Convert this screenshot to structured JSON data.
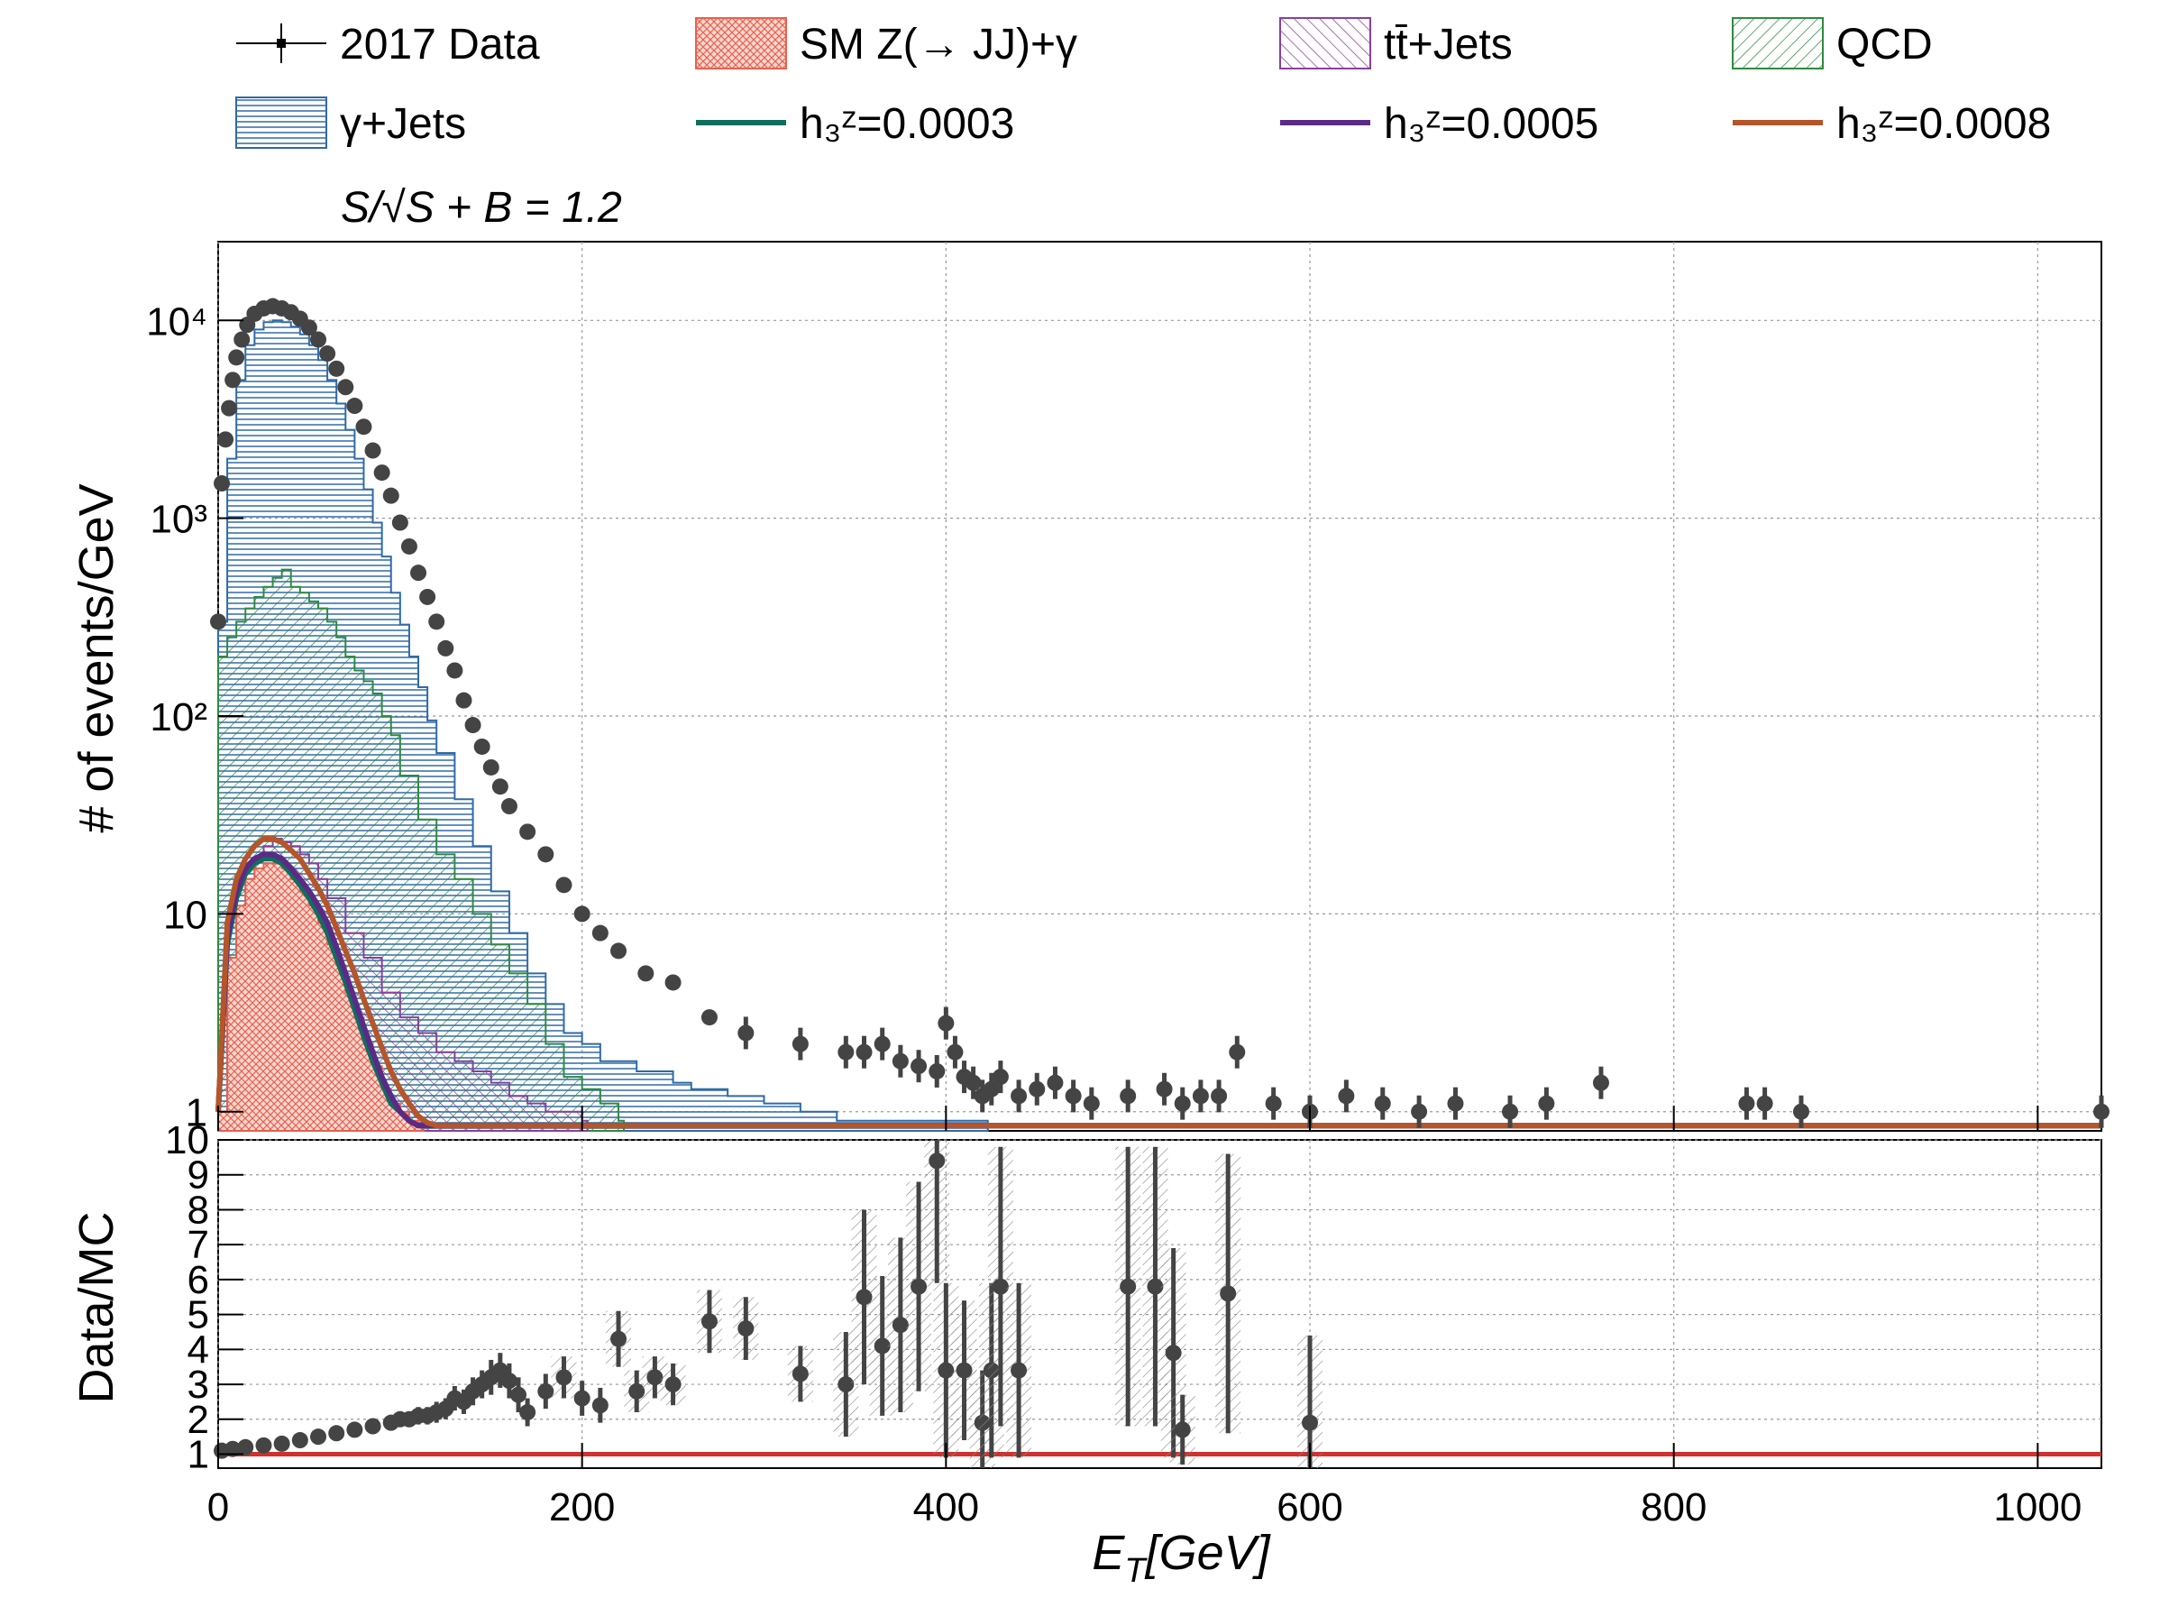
{
  "legend": {
    "entries": [
      {
        "key": "data",
        "label": "2017 Data",
        "style": "marker",
        "color": "#000000"
      },
      {
        "key": "smzg",
        "label": "SM Z(→ JJ)+γ",
        "style": "hatch-red",
        "color": "#e8604c"
      },
      {
        "key": "ttjets",
        "label": "tt̄+Jets",
        "style": "hatch-purple",
        "color": "#8a3f9e"
      },
      {
        "key": "qcd",
        "label": "QCD",
        "style": "hatch-green",
        "color": "#2e8b3e"
      },
      {
        "key": "gjets",
        "label": "γ+Jets",
        "style": "hatch-blue",
        "color": "#2f6aa8"
      },
      {
        "key": "h3_1",
        "label": "h₃ᶻ=0.0003",
        "style": "line",
        "color": "#0f6e5e"
      },
      {
        "key": "h3_2",
        "label": "h₃ᶻ=0.0005",
        "style": "line",
        "color": "#5b2a86"
      },
      {
        "key": "h3_3",
        "label": "h₃ᶻ=0.0008",
        "style": "line",
        "color": "#b5552a"
      }
    ],
    "significance": "S/√S + B = 1.2"
  },
  "chart_data": [
    {
      "type": "line",
      "panel": "main",
      "xlabel": "E_T[GeV]",
      "ylabel": "# of events/GeV",
      "xlim": [
        0,
        1035
      ],
      "ylim": [
        0.8,
        25000
      ],
      "yscale": "log",
      "grid": true,
      "y_tick_labels": [
        "1",
        "10",
        "10²",
        "10³",
        "10⁴"
      ],
      "y_tick_values": [
        1,
        10,
        100,
        1000,
        10000
      ],
      "x_tick_labels": [
        "0",
        "200",
        "400",
        "600",
        "800",
        "1000"
      ],
      "x_tick_values": [
        0,
        200,
        400,
        600,
        800,
        1000
      ],
      "series": [
        {
          "name": "γ+Jets",
          "color": "#2f6aa8",
          "x": [
            0,
            5,
            10,
            15,
            20,
            25,
            30,
            35,
            40,
            45,
            50,
            55,
            60,
            65,
            70,
            75,
            80,
            85,
            90,
            95,
            100,
            105,
            110,
            115,
            120,
            130,
            140,
            150,
            160,
            170,
            180,
            190,
            200,
            210,
            230,
            250,
            260,
            280,
            300,
            320,
            340,
            360,
            380,
            400,
            420
          ],
          "values": [
            300,
            2000,
            5000,
            7500,
            9000,
            9800,
            10000,
            9800,
            9300,
            8500,
            7500,
            6300,
            5000,
            3800,
            2800,
            2000,
            1400,
            950,
            640,
            420,
            290,
            200,
            140,
            95,
            65,
            38,
            22,
            13,
            8,
            5,
            3.5,
            2.5,
            2.2,
            1.8,
            1.6,
            1.4,
            1.3,
            1.2,
            1.1,
            1.0,
            0.9,
            0.9,
            0.9,
            0.9,
            0.9
          ]
        },
        {
          "name": "QCD",
          "color": "#2e8b3e",
          "x": [
            0,
            5,
            10,
            15,
            20,
            25,
            30,
            35,
            40,
            45,
            50,
            55,
            60,
            65,
            70,
            75,
            80,
            85,
            90,
            95,
            100,
            110,
            120,
            130,
            140,
            150,
            160,
            170,
            180,
            190,
            200,
            210,
            220
          ],
          "values": [
            200,
            250,
            300,
            350,
            400,
            450,
            500,
            550,
            450,
            420,
            380,
            350,
            300,
            250,
            200,
            170,
            150,
            130,
            100,
            80,
            50,
            30,
            20,
            15,
            10,
            7,
            5,
            3.5,
            2.2,
            1.5,
            1.3,
            1.1,
            0.9
          ]
        },
        {
          "name": "tt̄+Jets",
          "color": "#8a3f9e",
          "x": [
            0,
            5,
            10,
            15,
            20,
            25,
            30,
            35,
            40,
            45,
            50,
            55,
            60,
            70,
            80,
            90,
            100,
            110,
            120,
            130,
            140,
            150,
            160,
            170,
            180,
            190,
            200
          ],
          "values": [
            1,
            5,
            10,
            15,
            19,
            22,
            24,
            23,
            22,
            20,
            18,
            15,
            12,
            8,
            6,
            4,
            3,
            2.5,
            2,
            1.8,
            1.6,
            1.4,
            1.2,
            1.1,
            1.0,
            1.0,
            0.9
          ]
        },
        {
          "name": "SM Z(→ JJ)+γ",
          "color": "#e8604c",
          "x": [
            0,
            5,
            10,
            15,
            20,
            25,
            30,
            35,
            40,
            45,
            50,
            55,
            60,
            65,
            70,
            75,
            80,
            85,
            90,
            95,
            100,
            105,
            110
          ],
          "values": [
            1,
            6,
            11,
            15,
            17,
            18,
            18,
            17,
            15,
            13,
            11,
            9,
            7,
            5.5,
            4,
            3,
            2.2,
            1.7,
            1.3,
            1.1,
            1.0,
            0.9,
            0.85
          ]
        },
        {
          "name": "h₃ᶻ=0.0003",
          "color": "#0f6e5e",
          "x": [
            0,
            5,
            10,
            15,
            20,
            25,
            30,
            35,
            40,
            45,
            50,
            55,
            60,
            65,
            70,
            75,
            80,
            85,
            90,
            95,
            100,
            105,
            110,
            1035
          ],
          "values": [
            1,
            7,
            12,
            16,
            18,
            19,
            19,
            18,
            16,
            14,
            12,
            10,
            8,
            6,
            4.5,
            3.3,
            2.4,
            1.8,
            1.4,
            1.1,
            1.0,
            0.9,
            0.85,
            0.85
          ]
        },
        {
          "name": "h₃ᶻ=0.0005",
          "color": "#5b2a86",
          "x": [
            0,
            5,
            10,
            15,
            20,
            25,
            30,
            35,
            40,
            45,
            50,
            55,
            60,
            65,
            70,
            75,
            80,
            85,
            90,
            95,
            100,
            105,
            110,
            1035
          ],
          "values": [
            1,
            7.5,
            13,
            17,
            19,
            20,
            20,
            19,
            17,
            15,
            13,
            11,
            9,
            6.8,
            5,
            3.7,
            2.7,
            2.0,
            1.5,
            1.2,
            1.0,
            0.9,
            0.85,
            0.85
          ]
        },
        {
          "name": "h₃ᶻ=0.0008",
          "color": "#b5552a",
          "x": [
            0,
            5,
            10,
            15,
            20,
            25,
            30,
            35,
            40,
            45,
            50,
            55,
            60,
            65,
            70,
            75,
            80,
            85,
            90,
            95,
            100,
            105,
            110,
            115,
            120,
            1035
          ],
          "values": [
            1,
            9,
            15,
            19,
            22,
            24,
            24,
            23,
            21,
            19,
            16,
            13.5,
            11,
            8.5,
            6.5,
            5,
            3.7,
            2.8,
            2.1,
            1.6,
            1.3,
            1.1,
            0.95,
            0.88,
            0.85,
            0.85
          ]
        },
        {
          "name": "2017 Data",
          "color": "#444444",
          "style": "points",
          "x": [
            0,
            2,
            4,
            6,
            8,
            10,
            13,
            16,
            20,
            25,
            30,
            35,
            40,
            45,
            50,
            55,
            60,
            65,
            70,
            75,
            80,
            85,
            90,
            95,
            100,
            105,
            110,
            115,
            120,
            125,
            130,
            135,
            140,
            145,
            150,
            155,
            160,
            170,
            180,
            190,
            200,
            210,
            220,
            235,
            250,
            270,
            290,
            320,
            345,
            355,
            365,
            375,
            385,
            395,
            400,
            405,
            410,
            415,
            420,
            425,
            430,
            440,
            450,
            460,
            470,
            480,
            500,
            520,
            530,
            540,
            550,
            560,
            580,
            600,
            620,
            640,
            660,
            680,
            710,
            730,
            760,
            840,
            850,
            870,
            1035
          ],
          "values": [
            300,
            1500,
            2500,
            3600,
            5000,
            6500,
            8000,
            9500,
            10800,
            11500,
            11800,
            11500,
            11000,
            10200,
            9200,
            8000,
            6800,
            5700,
            4600,
            3700,
            2900,
            2200,
            1700,
            1300,
            950,
            720,
            530,
            400,
            300,
            220,
            170,
            120,
            90,
            70,
            55,
            44,
            35,
            26,
            20,
            14,
            10,
            8,
            6.5,
            5,
            4.5,
            3,
            2.5,
            2.2,
            2.0,
            2.0,
            2.2,
            1.8,
            1.7,
            1.6,
            2.8,
            2.0,
            1.5,
            1.4,
            1.2,
            1.3,
            1.5,
            1.2,
            1.3,
            1.4,
            1.2,
            1.1,
            1.2,
            1.3,
            1.1,
            1.2,
            1.2,
            2.0,
            1.1,
            1.0,
            1.2,
            1.1,
            1.0,
            1.1,
            1.0,
            1.1,
            1.4,
            1.1,
            1.1,
            1.0,
            1.0
          ]
        }
      ]
    },
    {
      "type": "scatter",
      "panel": "ratio",
      "xlabel": "E_T[GeV]",
      "ylabel": "Data/MC",
      "xlim": [
        0,
        1035
      ],
      "ylim": [
        0.6,
        10
      ],
      "grid": true,
      "y_tick_labels": [
        "1",
        "2",
        "3",
        "4",
        "5",
        "6",
        "7",
        "8",
        "9",
        "10"
      ],
      "y_tick_values": [
        1,
        2,
        3,
        4,
        5,
        6,
        7,
        8,
        9,
        10
      ],
      "reference_line": {
        "y": 1,
        "color": "#d0312d"
      },
      "points": {
        "x": [
          2,
          8,
          15,
          25,
          35,
          45,
          55,
          65,
          75,
          85,
          95,
          100,
          105,
          110,
          115,
          120,
          125,
          130,
          135,
          140,
          145,
          150,
          155,
          160,
          165,
          170,
          180,
          190,
          200,
          210,
          220,
          230,
          240,
          250,
          270,
          290,
          320,
          345,
          355,
          365,
          375,
          385,
          395,
          400,
          410,
          420,
          425,
          430,
          440,
          500,
          515,
          525,
          530,
          555,
          600
        ],
        "y": [
          1.1,
          1.15,
          1.2,
          1.25,
          1.3,
          1.4,
          1.5,
          1.6,
          1.7,
          1.8,
          1.9,
          2.0,
          2.0,
          2.1,
          2.1,
          2.2,
          2.3,
          2.6,
          2.5,
          2.8,
          3.0,
          3.2,
          3.4,
          3.1,
          2.7,
          2.2,
          2.8,
          3.2,
          2.6,
          2.4,
          4.3,
          2.8,
          3.2,
          3.0,
          4.8,
          4.6,
          3.3,
          3.0,
          5.5,
          4.1,
          4.7,
          5.8,
          9.4,
          3.4,
          3.4,
          1.9,
          3.4,
          5.8,
          3.4,
          5.8,
          5.8,
          3.9,
          1.7,
          5.6,
          1.9
        ],
        "yerr": [
          0.1,
          0.1,
          0.1,
          0.1,
          0.1,
          0.1,
          0.1,
          0.1,
          0.15,
          0.15,
          0.2,
          0.2,
          0.2,
          0.25,
          0.25,
          0.3,
          0.3,
          0.35,
          0.35,
          0.4,
          0.4,
          0.5,
          0.5,
          0.5,
          0.5,
          0.4,
          0.5,
          0.6,
          0.5,
          0.5,
          0.8,
          0.6,
          0.6,
          0.6,
          0.9,
          0.9,
          0.8,
          1.5,
          2.5,
          2.0,
          2.5,
          3.0,
          3.5,
          2.5,
          2.0,
          1.5,
          2.5,
          4.0,
          2.5,
          4.0,
          4.0,
          3.0,
          1.0,
          4.0,
          2.5
        ]
      }
    }
  ]
}
